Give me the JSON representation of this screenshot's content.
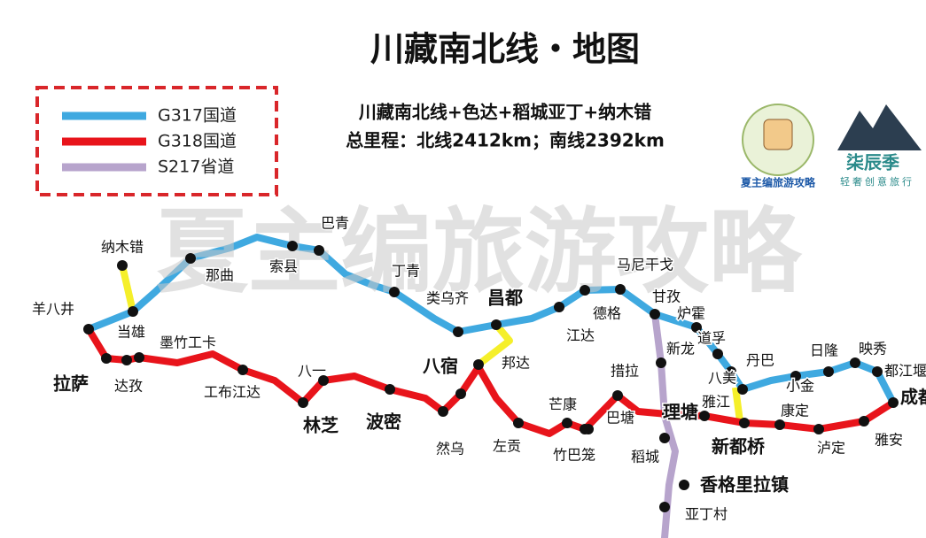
{
  "header": {
    "title": "川藏南北线・地图",
    "subtitle": "川藏南北线+色达+稻城亚丁+纳木错",
    "distance": "总里程：北线2412km；南线2392km"
  },
  "legend": [
    {
      "label": "G317国道",
      "color": "#3fa9e0"
    },
    {
      "label": "G318国道",
      "color": "#e8141b"
    },
    {
      "label": "S217省道",
      "color": "#b7a4cc"
    }
  ],
  "connector_color": "#f5ef2a",
  "logos": [
    {
      "name": "夏主编旅游攻略"
    },
    {
      "name": "柒辰季",
      "tagline": "轻奢创意旅行"
    }
  ],
  "watermark": "夏主编旅游攻略",
  "places": [
    {
      "name": "羊八井",
      "bold": false
    },
    {
      "name": "拉萨",
      "bold": true
    },
    {
      "name": "达孜",
      "bold": false
    },
    {
      "name": "当雄",
      "bold": false
    },
    {
      "name": "纳木错",
      "bold": false
    },
    {
      "name": "墨竹工卡",
      "bold": false
    },
    {
      "name": "工布江达",
      "bold": false
    },
    {
      "name": "那曲",
      "bold": false
    },
    {
      "name": "索县",
      "bold": false
    },
    {
      "name": "巴青",
      "bold": false
    },
    {
      "name": "丁青",
      "bold": false
    },
    {
      "name": "类乌齐",
      "bold": false
    },
    {
      "name": "昌都",
      "bold": true
    },
    {
      "name": "邦达",
      "bold": false
    },
    {
      "name": "八宿",
      "bold": true
    },
    {
      "name": "江达",
      "bold": false
    },
    {
      "name": "德格",
      "bold": false
    },
    {
      "name": "马尼干戈",
      "bold": false
    },
    {
      "name": "甘孜",
      "bold": false
    },
    {
      "name": "炉霍",
      "bold": false
    },
    {
      "name": "道孚",
      "bold": false
    },
    {
      "name": "新龙",
      "bold": false
    },
    {
      "name": "八美",
      "bold": false
    },
    {
      "name": "丹巴",
      "bold": false
    },
    {
      "name": "小金",
      "bold": false
    },
    {
      "name": "日隆",
      "bold": false
    },
    {
      "name": "映秀",
      "bold": false
    },
    {
      "name": "都江堰",
      "bold": false
    },
    {
      "name": "成都",
      "bold": true
    },
    {
      "name": "康定",
      "bold": false
    },
    {
      "name": "泸定",
      "bold": false
    },
    {
      "name": "雅安",
      "bold": false
    },
    {
      "name": "雅江",
      "bold": false
    },
    {
      "name": "新都桥",
      "bold": true
    },
    {
      "name": "理塘",
      "bold": true
    },
    {
      "name": "措拉",
      "bold": false
    },
    {
      "name": "巴塘",
      "bold": false
    },
    {
      "name": "芒康",
      "bold": false
    },
    {
      "name": "竹巴笼",
      "bold": false
    },
    {
      "name": "左贡",
      "bold": false
    },
    {
      "name": "然乌",
      "bold": false
    },
    {
      "name": "波密",
      "bold": true
    },
    {
      "name": "林芝",
      "bold": true
    },
    {
      "name": "八一",
      "bold": false
    },
    {
      "name": "稻城",
      "bold": false
    },
    {
      "name": "香格里拉镇",
      "bold": true
    },
    {
      "name": "亚丁村",
      "bold": false
    }
  ]
}
